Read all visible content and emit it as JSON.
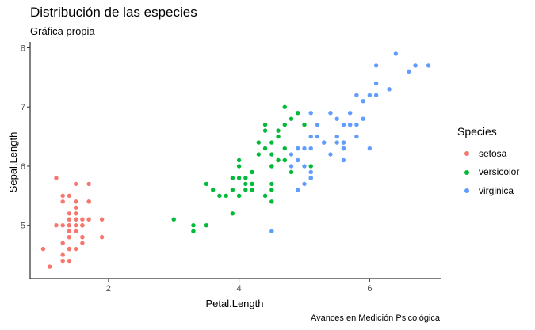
{
  "chart_data": {
    "type": "scatter",
    "title": "Distribución de las especies",
    "subtitle": "Gráfica propia",
    "caption": "Avances en Medición Psicológica",
    "xlabel": "Petal.Length",
    "ylabel": "Sepal.Length",
    "xlim": [
      0.8,
      7.1
    ],
    "ylim": [
      4.1,
      8.1
    ],
    "xticks": [
      2,
      4,
      6
    ],
    "yticks": [
      5,
      6,
      7,
      8
    ],
    "grid": false,
    "legend": {
      "title": "Species",
      "position": "right"
    },
    "series": [
      {
        "name": "setosa",
        "color": "#F8766D",
        "points": [
          [
            1.4,
            5.1
          ],
          [
            1.4,
            4.9
          ],
          [
            1.3,
            4.7
          ],
          [
            1.5,
            4.6
          ],
          [
            1.4,
            5.0
          ],
          [
            1.7,
            5.4
          ],
          [
            1.4,
            4.6
          ],
          [
            1.5,
            5.0
          ],
          [
            1.4,
            4.4
          ],
          [
            1.5,
            4.9
          ],
          [
            1.5,
            5.4
          ],
          [
            1.6,
            4.8
          ],
          [
            1.4,
            4.8
          ],
          [
            1.1,
            4.3
          ],
          [
            1.2,
            5.8
          ],
          [
            1.5,
            5.7
          ],
          [
            1.3,
            5.4
          ],
          [
            1.4,
            5.1
          ],
          [
            1.7,
            5.7
          ],
          [
            1.5,
            5.1
          ],
          [
            1.7,
            5.4
          ],
          [
            1.5,
            5.1
          ],
          [
            1.0,
            4.6
          ],
          [
            1.7,
            5.1
          ],
          [
            1.9,
            4.8
          ],
          [
            1.6,
            5.0
          ],
          [
            1.6,
            5.0
          ],
          [
            1.5,
            5.2
          ],
          [
            1.4,
            5.2
          ],
          [
            1.6,
            4.7
          ],
          [
            1.6,
            4.8
          ],
          [
            1.5,
            5.4
          ],
          [
            1.5,
            5.2
          ],
          [
            1.4,
            5.5
          ],
          [
            1.5,
            4.9
          ],
          [
            1.2,
            5.0
          ],
          [
            1.3,
            5.5
          ],
          [
            1.4,
            4.9
          ],
          [
            1.3,
            4.4
          ],
          [
            1.5,
            5.1
          ],
          [
            1.3,
            5.0
          ],
          [
            1.3,
            4.5
          ],
          [
            1.3,
            4.4
          ],
          [
            1.6,
            5.0
          ],
          [
            1.9,
            5.1
          ],
          [
            1.4,
            4.8
          ],
          [
            1.6,
            5.1
          ],
          [
            1.4,
            4.6
          ],
          [
            1.5,
            5.3
          ],
          [
            1.4,
            5.0
          ]
        ]
      },
      {
        "name": "versicolor",
        "color": "#00BA38",
        "points": [
          [
            4.7,
            7.0
          ],
          [
            4.5,
            6.4
          ],
          [
            4.9,
            6.9
          ],
          [
            4.0,
            5.5
          ],
          [
            4.6,
            6.5
          ],
          [
            4.5,
            5.7
          ],
          [
            4.7,
            6.3
          ],
          [
            3.3,
            4.9
          ],
          [
            4.6,
            6.6
          ],
          [
            3.9,
            5.2
          ],
          [
            3.5,
            5.0
          ],
          [
            4.2,
            5.9
          ],
          [
            4.0,
            6.0
          ],
          [
            4.7,
            6.1
          ],
          [
            3.6,
            5.6
          ],
          [
            4.4,
            6.7
          ],
          [
            4.5,
            5.6
          ],
          [
            4.1,
            5.8
          ],
          [
            4.5,
            6.2
          ],
          [
            3.9,
            5.6
          ],
          [
            4.8,
            5.9
          ],
          [
            4.0,
            6.1
          ],
          [
            4.9,
            6.3
          ],
          [
            4.7,
            6.1
          ],
          [
            4.3,
            6.4
          ],
          [
            4.4,
            6.6
          ],
          [
            4.8,
            6.8
          ],
          [
            5.0,
            6.7
          ],
          [
            4.5,
            6.0
          ],
          [
            3.5,
            5.7
          ],
          [
            3.8,
            5.5
          ],
          [
            3.7,
            5.5
          ],
          [
            3.9,
            5.8
          ],
          [
            5.1,
            6.0
          ],
          [
            4.5,
            5.4
          ],
          [
            4.5,
            6.0
          ],
          [
            4.7,
            6.7
          ],
          [
            4.4,
            6.3
          ],
          [
            4.1,
            5.6
          ],
          [
            4.0,
            5.5
          ],
          [
            4.4,
            5.5
          ],
          [
            4.6,
            6.1
          ],
          [
            4.0,
            5.8
          ],
          [
            3.3,
            5.0
          ],
          [
            4.2,
            5.6
          ],
          [
            4.2,
            5.7
          ],
          [
            4.2,
            5.7
          ],
          [
            4.3,
            6.2
          ],
          [
            3.0,
            5.1
          ],
          [
            4.1,
            5.7
          ]
        ]
      },
      {
        "name": "virginica",
        "color": "#619CFF",
        "points": [
          [
            6.0,
            6.3
          ],
          [
            5.1,
            5.8
          ],
          [
            5.9,
            7.1
          ],
          [
            5.6,
            6.3
          ],
          [
            5.8,
            6.5
          ],
          [
            6.6,
            7.6
          ],
          [
            4.5,
            4.9
          ],
          [
            6.3,
            7.3
          ],
          [
            5.8,
            6.7
          ],
          [
            6.1,
            7.2
          ],
          [
            5.1,
            6.5
          ],
          [
            5.3,
            6.4
          ],
          [
            5.5,
            6.8
          ],
          [
            5.0,
            5.7
          ],
          [
            5.1,
            5.8
          ],
          [
            5.3,
            6.4
          ],
          [
            5.5,
            6.5
          ],
          [
            6.7,
            7.7
          ],
          [
            6.9,
            7.7
          ],
          [
            5.0,
            6.0
          ],
          [
            5.7,
            6.9
          ],
          [
            4.9,
            5.6
          ],
          [
            6.7,
            7.7
          ],
          [
            4.9,
            6.3
          ],
          [
            5.7,
            6.7
          ],
          [
            6.0,
            7.2
          ],
          [
            4.8,
            6.2
          ],
          [
            4.9,
            6.1
          ],
          [
            5.6,
            6.4
          ],
          [
            5.8,
            7.2
          ],
          [
            6.1,
            7.4
          ],
          [
            6.4,
            7.9
          ],
          [
            5.6,
            6.4
          ],
          [
            5.1,
            6.3
          ],
          [
            5.6,
            6.1
          ],
          [
            6.1,
            7.7
          ],
          [
            5.6,
            6.3
          ],
          [
            5.5,
            6.4
          ],
          [
            4.8,
            6.0
          ],
          [
            5.4,
            6.9
          ],
          [
            5.6,
            6.7
          ],
          [
            5.1,
            6.9
          ],
          [
            5.1,
            5.8
          ],
          [
            5.9,
            6.8
          ],
          [
            5.7,
            6.7
          ],
          [
            5.2,
            6.7
          ],
          [
            5.0,
            6.3
          ],
          [
            5.2,
            6.5
          ],
          [
            5.4,
            6.2
          ],
          [
            5.1,
            5.9
          ]
        ]
      }
    ]
  }
}
